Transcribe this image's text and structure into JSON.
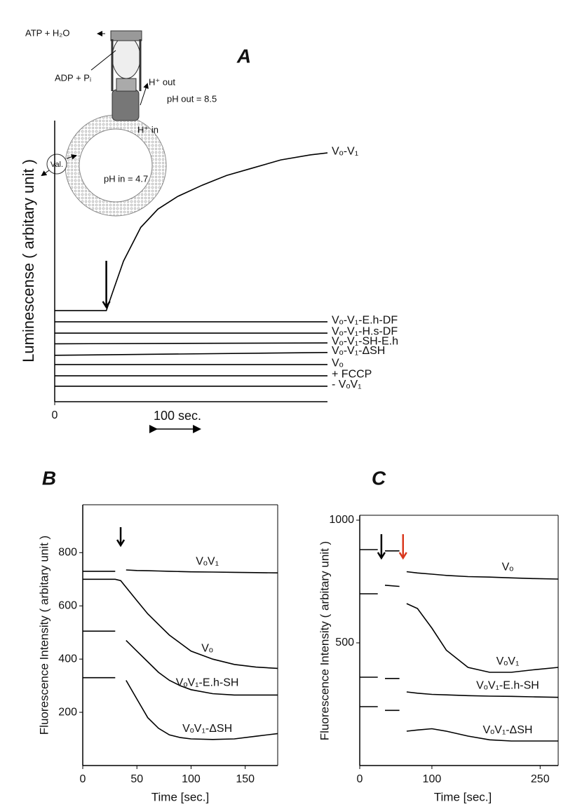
{
  "chart_data": [
    {
      "type": "line",
      "title": "A",
      "y_label": "Luminescense ( arbitary unit )",
      "xlim": [
        0,
        555
      ],
      "ylim": [
        0,
        100
      ],
      "xticks": [
        0
      ],
      "scale_bar": {
        "value": 100,
        "label": "100 sec."
      },
      "arrows": [
        {
          "x": 105,
          "color": "#000000"
        }
      ],
      "annotations": [
        "ATP + H₂O",
        "ADP + Pᵢ",
        "H⁺ out",
        "pH out = 8.5",
        "H⁺ in",
        "Val.",
        "pH in = 4.7"
      ],
      "series": [
        {
          "name": "Vₒ-V₁",
          "color": "#000000",
          "x": [
            0,
            105,
            120,
            140,
            175,
            210,
            250,
            300,
            350,
            400,
            460,
            520,
            555
          ],
          "values": [
            32.4,
            32.4,
            40,
            50,
            62,
            68.5,
            73,
            77,
            80.5,
            83,
            86,
            87.8,
            88.5
          ]
        },
        {
          "name": "Vₒ-V₁-E.h-DF",
          "color": "#000000",
          "x": [
            0,
            555
          ],
          "values": [
            28.4,
            28.4
          ]
        },
        {
          "name": "Vₒ-V₁-H.s-DF",
          "color": "#000000",
          "x": [
            0,
            555
          ],
          "values": [
            24.4,
            24.4
          ]
        },
        {
          "name": "Vₒ-V₁-SH-E.h",
          "color": "#000000",
          "x": [
            0,
            555
          ],
          "values": [
            20.6,
            20.9
          ]
        },
        {
          "name": "Vₒ-V₁-ΔSH",
          "color": "#000000",
          "x": [
            0,
            555
          ],
          "values": [
            16.5,
            17.5
          ]
        },
        {
          "name": "Vₒ",
          "color": "#000000",
          "x": [
            0,
            555
          ],
          "values": [
            13.2,
            13.2
          ]
        },
        {
          "name": "+ FCCP",
          "color": "#000000",
          "x": [
            0,
            555
          ],
          "values": [
            9.2,
            9.2
          ]
        },
        {
          "name": "- VₒV₁",
          "color": "#000000",
          "x": [
            0,
            555
          ],
          "values": [
            5.5,
            5.5
          ]
        }
      ]
    },
    {
      "type": "line",
      "title": "B",
      "y_label": "Fluorescence Intensity ( arbitary unit )",
      "x_label": "Time [sec.]",
      "xlim": [
        0,
        180
      ],
      "ylim": [
        0,
        980
      ],
      "xticks": [
        0,
        50,
        100,
        150
      ],
      "yticks": [
        200,
        400,
        600,
        800
      ],
      "arrows": [
        {
          "x": 35,
          "color": "#000000"
        }
      ],
      "x": [
        0,
        30,
        35,
        40,
        50,
        60,
        70,
        80,
        90,
        100,
        120,
        140,
        160,
        180
      ],
      "series": [
        {
          "name": "VₒV₁",
          "color": "#000000",
          "values": [
            730,
            730,
            null,
            735,
            733,
            732,
            731,
            730,
            729,
            728,
            727,
            726,
            725,
            724
          ]
        },
        {
          "name": "Vₒ",
          "color": "#000000",
          "values": [
            700,
            700,
            695,
            670,
            620,
            570,
            530,
            490,
            460,
            430,
            400,
            380,
            370,
            365
          ]
        },
        {
          "name": "VₒV₁-E.h-SH",
          "color": "#000000",
          "values": [
            505,
            505,
            null,
            470,
            430,
            390,
            350,
            320,
            300,
            285,
            270,
            265,
            265,
            265
          ]
        },
        {
          "name": "VₒV₁-ΔSH",
          "color": "#000000",
          "values": [
            330,
            330,
            null,
            320,
            250,
            180,
            140,
            115,
            105,
            100,
            98,
            100,
            110,
            120
          ]
        }
      ]
    },
    {
      "type": "line",
      "title": "C",
      "y_label": "Fluorescence Intensity ( arbitary unit )",
      "x_label": "Time [sec.]",
      "xlim": [
        0,
        275
      ],
      "ylim": [
        0,
        1020
      ],
      "xticks": [
        0,
        100,
        250
      ],
      "yticks": [
        500,
        1000
      ],
      "arrows": [
        {
          "x": 30,
          "color": "#000000"
        },
        {
          "x": 60,
          "color": "#d9381e"
        }
      ],
      "x": [
        0,
        25,
        30,
        35,
        55,
        60,
        65,
        80,
        100,
        120,
        150,
        180,
        210,
        240,
        275
      ],
      "series": [
        {
          "name": "Vₒ",
          "color": "#000000",
          "values": [
            880,
            880,
            null,
            875,
            875,
            null,
            790,
            785,
            780,
            775,
            770,
            768,
            765,
            762,
            760
          ]
        },
        {
          "name": "VₒV₁",
          "color": "#000000",
          "values": [
            700,
            700,
            null,
            735,
            730,
            null,
            660,
            640,
            560,
            470,
            400,
            380,
            380,
            390,
            400
          ]
        },
        {
          "name": "VₒV₁-E.h-SH",
          "color": "#000000",
          "values": [
            360,
            360,
            null,
            355,
            355,
            null,
            300,
            295,
            290,
            288,
            285,
            283,
            282,
            280,
            278
          ]
        },
        {
          "name": "VₒV₁-ΔSH",
          "color": "#000000",
          "values": [
            240,
            240,
            null,
            225,
            225,
            null,
            140,
            145,
            150,
            140,
            120,
            105,
            100,
            100,
            100
          ]
        }
      ]
    }
  ]
}
